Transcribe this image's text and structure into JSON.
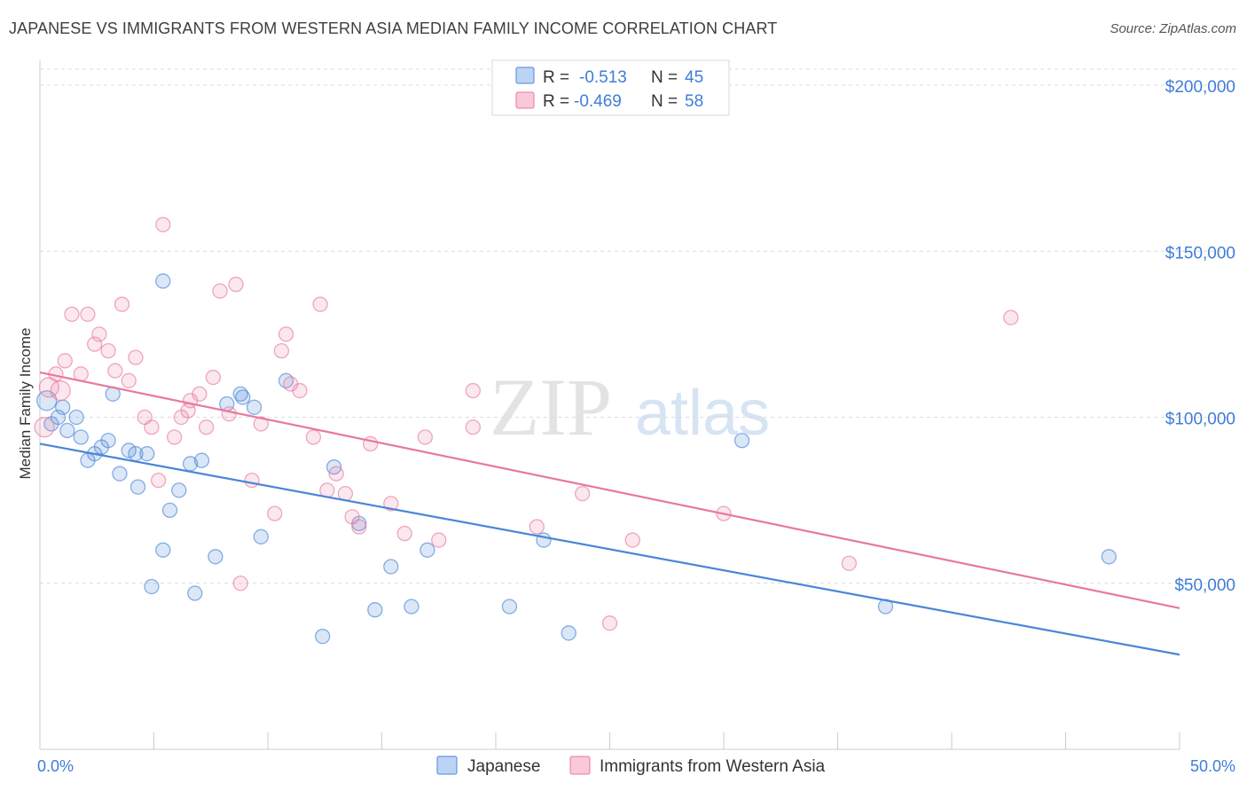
{
  "header": {
    "title": "JAPANESE VS IMMIGRANTS FROM WESTERN ASIA MEDIAN FAMILY INCOME CORRELATION CHART",
    "source": "Source: ZipAtlas.com"
  },
  "watermark": {
    "zip": "ZIP",
    "atlas": "atlas"
  },
  "legend": {
    "rows": [
      {
        "r_label": "R =",
        "r_value": "-0.513",
        "n_label": "N =",
        "n_value": "45"
      },
      {
        "r_label": "R =",
        "r_value": "-0.469",
        "n_label": "N =",
        "n_value": "58"
      }
    ]
  },
  "chart_data": {
    "type": "scatter",
    "xlabel": "",
    "ylabel": "Median Family Income",
    "xlim": [
      0,
      50
    ],
    "ylim": [
      0,
      210000
    ],
    "x_tick_labels": [
      "0.0%",
      "50.0%"
    ],
    "y_ticks": [
      {
        "value": 50000,
        "label": "$50,000"
      },
      {
        "value": 100000,
        "label": "$100,000"
      },
      {
        "value": 150000,
        "label": "$150,000"
      },
      {
        "value": 200000,
        "label": "$200,000"
      }
    ],
    "grid": "horizontal dashed",
    "legend_position": "bottom",
    "colors": {
      "japanese": "#4a86d8",
      "western_asia": "#e8799e"
    },
    "series": [
      {
        "name": "Japanese",
        "trend": {
          "x": [
            0,
            50
          ],
          "y": [
            92000,
            28500
          ]
        },
        "points": [
          [
            0.3,
            105000
          ],
          [
            0.8,
            100000
          ],
          [
            1.0,
            103000
          ],
          [
            1.2,
            96000
          ],
          [
            1.6,
            100000
          ],
          [
            1.8,
            94000
          ],
          [
            2.1,
            87000
          ],
          [
            2.4,
            89000
          ],
          [
            2.7,
            91000
          ],
          [
            3.0,
            93000
          ],
          [
            3.2,
            107000
          ],
          [
            3.5,
            83000
          ],
          [
            3.9,
            90000
          ],
          [
            4.2,
            89000
          ],
          [
            4.3,
            79000
          ],
          [
            4.7,
            89000
          ],
          [
            4.9,
            49000
          ],
          [
            5.4,
            60000
          ],
          [
            5.4,
            141000
          ],
          [
            5.7,
            72000
          ],
          [
            6.1,
            78000
          ],
          [
            6.6,
            86000
          ],
          [
            6.8,
            47000
          ],
          [
            7.1,
            87000
          ],
          [
            7.7,
            58000
          ],
          [
            8.2,
            104000
          ],
          [
            8.8,
            107000
          ],
          [
            8.9,
            106000
          ],
          [
            9.4,
            103000
          ],
          [
            9.7,
            64000
          ],
          [
            10.8,
            111000
          ],
          [
            12.4,
            34000
          ],
          [
            12.9,
            85000
          ],
          [
            14.0,
            68000
          ],
          [
            14.7,
            42000
          ],
          [
            15.4,
            55000
          ],
          [
            16.3,
            43000
          ],
          [
            17.0,
            60000
          ],
          [
            20.6,
            43000
          ],
          [
            22.1,
            63000
          ],
          [
            23.2,
            35000
          ],
          [
            30.8,
            93000
          ],
          [
            37.1,
            43000
          ],
          [
            46.9,
            58000
          ],
          [
            0.5,
            98000
          ]
        ]
      },
      {
        "name": "Immigrants from Western Asia",
        "trend": {
          "x": [
            0,
            50
          ],
          "y": [
            113500,
            42500
          ]
        },
        "points": [
          [
            0.2,
            97000
          ],
          [
            0.4,
            109000
          ],
          [
            0.7,
            113000
          ],
          [
            0.9,
            108000
          ],
          [
            1.1,
            117000
          ],
          [
            1.4,
            131000
          ],
          [
            1.8,
            113000
          ],
          [
            2.1,
            131000
          ],
          [
            2.4,
            122000
          ],
          [
            2.6,
            125000
          ],
          [
            3.0,
            120000
          ],
          [
            3.3,
            114000
          ],
          [
            3.6,
            134000
          ],
          [
            3.9,
            111000
          ],
          [
            4.2,
            118000
          ],
          [
            4.6,
            100000
          ],
          [
            4.9,
            97000
          ],
          [
            5.2,
            81000
          ],
          [
            5.4,
            158000
          ],
          [
            5.9,
            94000
          ],
          [
            6.2,
            100000
          ],
          [
            6.5,
            102000
          ],
          [
            6.6,
            105000
          ],
          [
            7.0,
            107000
          ],
          [
            7.3,
            97000
          ],
          [
            7.6,
            112000
          ],
          [
            7.9,
            138000
          ],
          [
            8.3,
            101000
          ],
          [
            8.6,
            140000
          ],
          [
            8.8,
            50000
          ],
          [
            9.3,
            81000
          ],
          [
            9.7,
            98000
          ],
          [
            10.3,
            71000
          ],
          [
            10.6,
            120000
          ],
          [
            10.8,
            125000
          ],
          [
            11.0,
            110000
          ],
          [
            11.4,
            108000
          ],
          [
            12.0,
            94000
          ],
          [
            12.3,
            134000
          ],
          [
            12.6,
            78000
          ],
          [
            13.0,
            83000
          ],
          [
            13.4,
            77000
          ],
          [
            13.7,
            70000
          ],
          [
            14.0,
            67000
          ],
          [
            14.5,
            92000
          ],
          [
            15.4,
            74000
          ],
          [
            16.0,
            65000
          ],
          [
            16.9,
            94000
          ],
          [
            17.5,
            63000
          ],
          [
            19.0,
            108000
          ],
          [
            19.0,
            97000
          ],
          [
            21.8,
            67000
          ],
          [
            23.8,
            77000
          ],
          [
            25.0,
            38000
          ],
          [
            26.0,
            63000
          ],
          [
            30.0,
            71000
          ],
          [
            35.5,
            56000
          ],
          [
            42.6,
            130000
          ]
        ]
      }
    ]
  }
}
